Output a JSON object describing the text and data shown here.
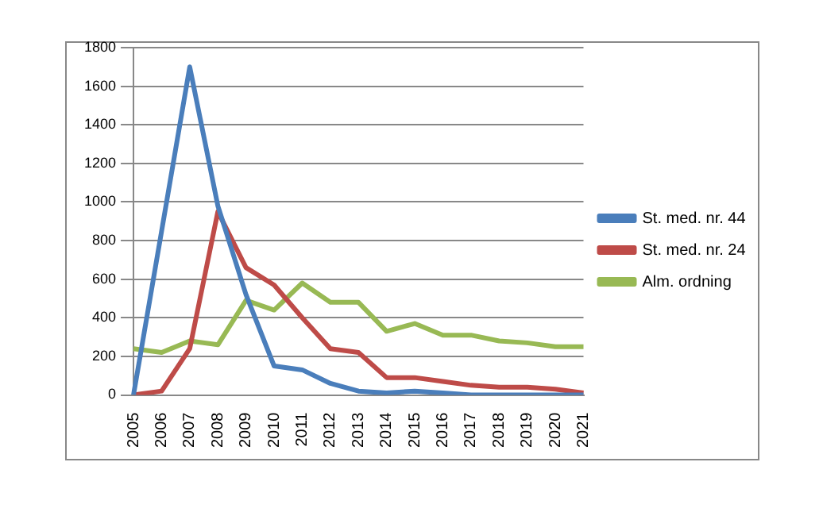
{
  "chart_data": {
    "type": "line",
    "categories": [
      "2005",
      "2006",
      "2007",
      "2008",
      "2009",
      "2010",
      "2011",
      "2012",
      "2013",
      "2014",
      "2015",
      "2016",
      "2017",
      "2018",
      "2019",
      "2020",
      "2021"
    ],
    "series": [
      {
        "name": "St. med. nr. 44",
        "color": "#4a7ebb",
        "values": [
          0,
          850,
          1700,
          980,
          520,
          150,
          130,
          60,
          20,
          10,
          20,
          10,
          0,
          0,
          0,
          0,
          0
        ]
      },
      {
        "name": "St. med. nr. 24",
        "color": "#be4b48",
        "values": [
          0,
          20,
          240,
          950,
          660,
          570,
          400,
          240,
          220,
          90,
          90,
          70,
          50,
          40,
          40,
          30,
          10
        ]
      },
      {
        "name": "Alm. ordning",
        "color": "#98b954",
        "values": [
          240,
          220,
          280,
          260,
          490,
          440,
          580,
          480,
          480,
          330,
          370,
          310,
          310,
          280,
          270,
          250,
          250
        ]
      }
    ],
    "ylim": [
      0,
      1800
    ],
    "yticks": [
      0,
      200,
      400,
      600,
      800,
      1000,
      1200,
      1400,
      1600,
      1800
    ],
    "grid": "y",
    "legend": "right",
    "marker": "none",
    "line_style": "solid"
  }
}
